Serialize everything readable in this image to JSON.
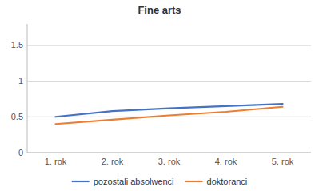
{
  "chart_data": {
    "type": "line",
    "title": "Fine arts",
    "categories": [
      "1. rok",
      "2. rok",
      "3. rok",
      "4. rok",
      "5. rok"
    ],
    "series": [
      {
        "name": "pozostali absolwenci",
        "color": "#4472C4",
        "values": [
          0.5,
          0.58,
          0.62,
          0.65,
          0.68
        ]
      },
      {
        "name": "doktoranci",
        "color": "#ED7D31",
        "values": [
          0.4,
          0.46,
          0.52,
          0.57,
          0.64
        ]
      }
    ],
    "ylim": [
      0,
      1.8
    ],
    "yticks": [
      0,
      0.5,
      1,
      1.5
    ],
    "grid": true,
    "legend": "bottom"
  }
}
